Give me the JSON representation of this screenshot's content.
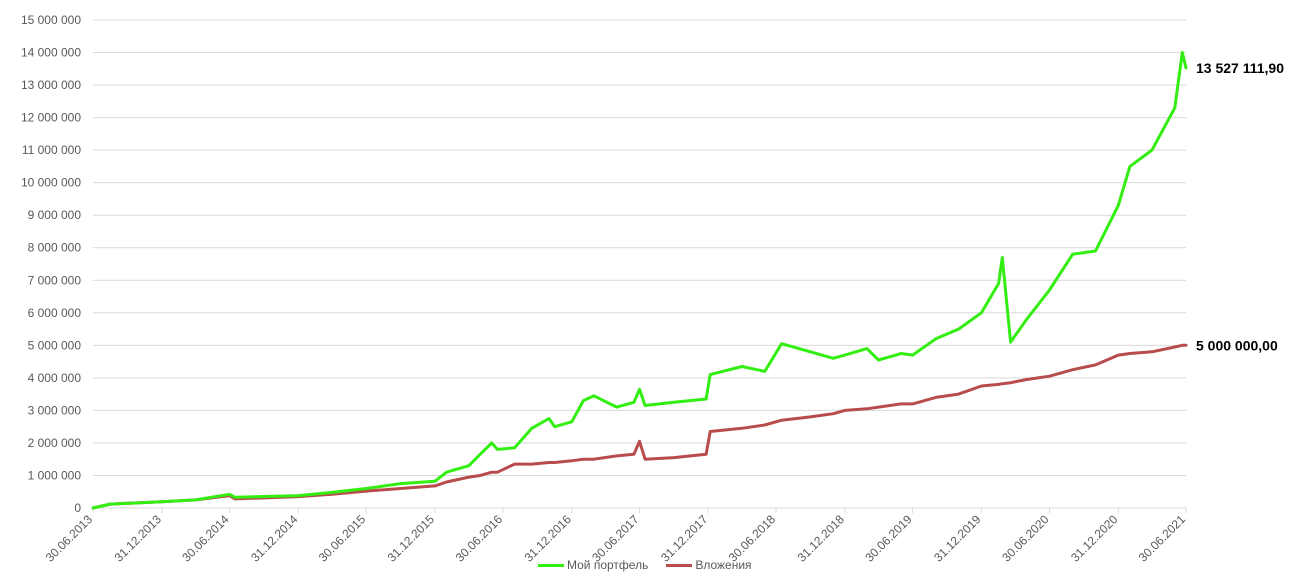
{
  "chart_data": {
    "type": "line",
    "title": "",
    "xlabel": "",
    "ylabel": "",
    "ylim": [
      0,
      15000000
    ],
    "y_ticks": [
      "0",
      "1 000 000",
      "2 000 000",
      "3 000 000",
      "4 000 000",
      "5 000 000",
      "6 000 000",
      "7 000 000",
      "8 000 000",
      "9 000 000",
      "10 000 000",
      "11 000 000",
      "12 000 000",
      "13 000 000",
      "14 000 000",
      "15 000 000"
    ],
    "y_tick_values": [
      0,
      1000000,
      2000000,
      3000000,
      4000000,
      5000000,
      6000000,
      7000000,
      8000000,
      9000000,
      10000000,
      11000000,
      12000000,
      13000000,
      14000000,
      15000000
    ],
    "x_ticks": [
      "30.06.2013",
      "31.12.2013",
      "30.06.2014",
      "31.12.2014",
      "30.06.2015",
      "31.12.2015",
      "30.06.2016",
      "31.12.2016",
      "30.06.2017",
      "31.12.2017",
      "30.06.2018",
      "31.12.2018",
      "30.06.2019",
      "31.12.2019",
      "30.06.2020",
      "31.12.2020",
      "30.06.2021"
    ],
    "grid": true,
    "legend_position": "bottom",
    "series": [
      {
        "name": "Мой портфель",
        "color": "#33ee11",
        "end_label": "13 527 111,90",
        "points": [
          [
            "2013-06-30",
            0
          ],
          [
            "2013-08-15",
            120000
          ],
          [
            "2013-12-31",
            190000
          ],
          [
            "2014-03-31",
            250000
          ],
          [
            "2014-06-30",
            420000
          ],
          [
            "2014-07-15",
            330000
          ],
          [
            "2014-12-31",
            380000
          ],
          [
            "2015-03-31",
            480000
          ],
          [
            "2015-06-30",
            600000
          ],
          [
            "2015-09-30",
            750000
          ],
          [
            "2015-12-31",
            820000
          ],
          [
            "2016-01-31",
            1100000
          ],
          [
            "2016-03-31",
            1300000
          ],
          [
            "2016-04-30",
            1650000
          ],
          [
            "2016-05-31",
            2000000
          ],
          [
            "2016-06-15",
            1800000
          ],
          [
            "2016-07-31",
            1850000
          ],
          [
            "2016-09-15",
            2450000
          ],
          [
            "2016-10-31",
            2750000
          ],
          [
            "2016-11-15",
            2500000
          ],
          [
            "2016-12-31",
            2650000
          ],
          [
            "2017-01-31",
            3300000
          ],
          [
            "2017-02-28",
            3450000
          ],
          [
            "2017-04-30",
            3100000
          ],
          [
            "2017-06-15",
            3250000
          ],
          [
            "2017-06-30",
            3650000
          ],
          [
            "2017-07-15",
            3150000
          ],
          [
            "2017-09-30",
            3250000
          ],
          [
            "2017-12-25",
            3350000
          ],
          [
            "2018-01-05",
            4100000
          ],
          [
            "2018-03-31",
            4350000
          ],
          [
            "2018-05-31",
            4200000
          ],
          [
            "2018-07-15",
            5050000
          ],
          [
            "2018-09-30",
            4800000
          ],
          [
            "2018-11-30",
            4600000
          ],
          [
            "2018-12-31",
            4700000
          ],
          [
            "2019-02-28",
            4900000
          ],
          [
            "2019-03-31",
            4550000
          ],
          [
            "2019-05-31",
            4750000
          ],
          [
            "2019-06-30",
            4700000
          ],
          [
            "2019-08-31",
            5200000
          ],
          [
            "2019-10-31",
            5500000
          ],
          [
            "2019-12-31",
            6000000
          ],
          [
            "2020-02-15",
            6900000
          ],
          [
            "2020-02-25",
            7700000
          ],
          [
            "2020-03-18",
            5100000
          ],
          [
            "2020-04-30",
            5800000
          ],
          [
            "2020-06-30",
            6700000
          ],
          [
            "2020-08-31",
            7800000
          ],
          [
            "2020-10-31",
            7900000
          ],
          [
            "2020-12-31",
            9300000
          ],
          [
            "2021-01-31",
            10500000
          ],
          [
            "2021-03-31",
            11000000
          ],
          [
            "2021-05-31",
            12300000
          ],
          [
            "2021-06-20",
            14000000
          ],
          [
            "2021-06-30",
            13527111.9
          ]
        ]
      },
      {
        "name": "Вложения",
        "color": "#b84c4c",
        "end_label": "5 000 000,00",
        "points": [
          [
            "2013-06-30",
            0
          ],
          [
            "2013-08-15",
            120000
          ],
          [
            "2013-12-31",
            190000
          ],
          [
            "2014-03-31",
            250000
          ],
          [
            "2014-06-30",
            380000
          ],
          [
            "2014-07-15",
            280000
          ],
          [
            "2014-12-31",
            350000
          ],
          [
            "2015-03-31",
            420000
          ],
          [
            "2015-06-30",
            520000
          ],
          [
            "2015-09-30",
            600000
          ],
          [
            "2015-12-31",
            680000
          ],
          [
            "2016-01-31",
            800000
          ],
          [
            "2016-03-31",
            950000
          ],
          [
            "2016-04-30",
            1000000
          ],
          [
            "2016-05-31",
            1100000
          ],
          [
            "2016-06-15",
            1100000
          ],
          [
            "2016-07-31",
            1350000
          ],
          [
            "2016-09-15",
            1350000
          ],
          [
            "2016-10-31",
            1400000
          ],
          [
            "2016-11-15",
            1400000
          ],
          [
            "2016-12-31",
            1450000
          ],
          [
            "2017-01-31",
            1500000
          ],
          [
            "2017-02-28",
            1500000
          ],
          [
            "2017-04-30",
            1600000
          ],
          [
            "2017-06-15",
            1650000
          ],
          [
            "2017-06-30",
            2050000
          ],
          [
            "2017-07-15",
            1500000
          ],
          [
            "2017-09-30",
            1550000
          ],
          [
            "2017-12-25",
            1650000
          ],
          [
            "2018-01-05",
            2350000
          ],
          [
            "2018-03-31",
            2450000
          ],
          [
            "2018-05-31",
            2550000
          ],
          [
            "2018-07-15",
            2700000
          ],
          [
            "2018-09-30",
            2800000
          ],
          [
            "2018-11-30",
            2900000
          ],
          [
            "2018-12-31",
            3000000
          ],
          [
            "2019-02-28",
            3050000
          ],
          [
            "2019-03-31",
            3100000
          ],
          [
            "2019-05-31",
            3200000
          ],
          [
            "2019-06-30",
            3200000
          ],
          [
            "2019-08-31",
            3400000
          ],
          [
            "2019-10-31",
            3500000
          ],
          [
            "2019-12-31",
            3750000
          ],
          [
            "2020-02-15",
            3800000
          ],
          [
            "2020-02-25",
            3820000
          ],
          [
            "2020-03-18",
            3850000
          ],
          [
            "2020-04-30",
            3950000
          ],
          [
            "2020-06-30",
            4050000
          ],
          [
            "2020-08-31",
            4250000
          ],
          [
            "2020-10-31",
            4400000
          ],
          [
            "2020-12-31",
            4700000
          ],
          [
            "2021-01-31",
            4750000
          ],
          [
            "2021-03-31",
            4800000
          ],
          [
            "2021-05-31",
            4950000
          ],
          [
            "2021-06-20",
            5000000
          ],
          [
            "2021-06-30",
            5000000
          ]
        ]
      }
    ]
  }
}
